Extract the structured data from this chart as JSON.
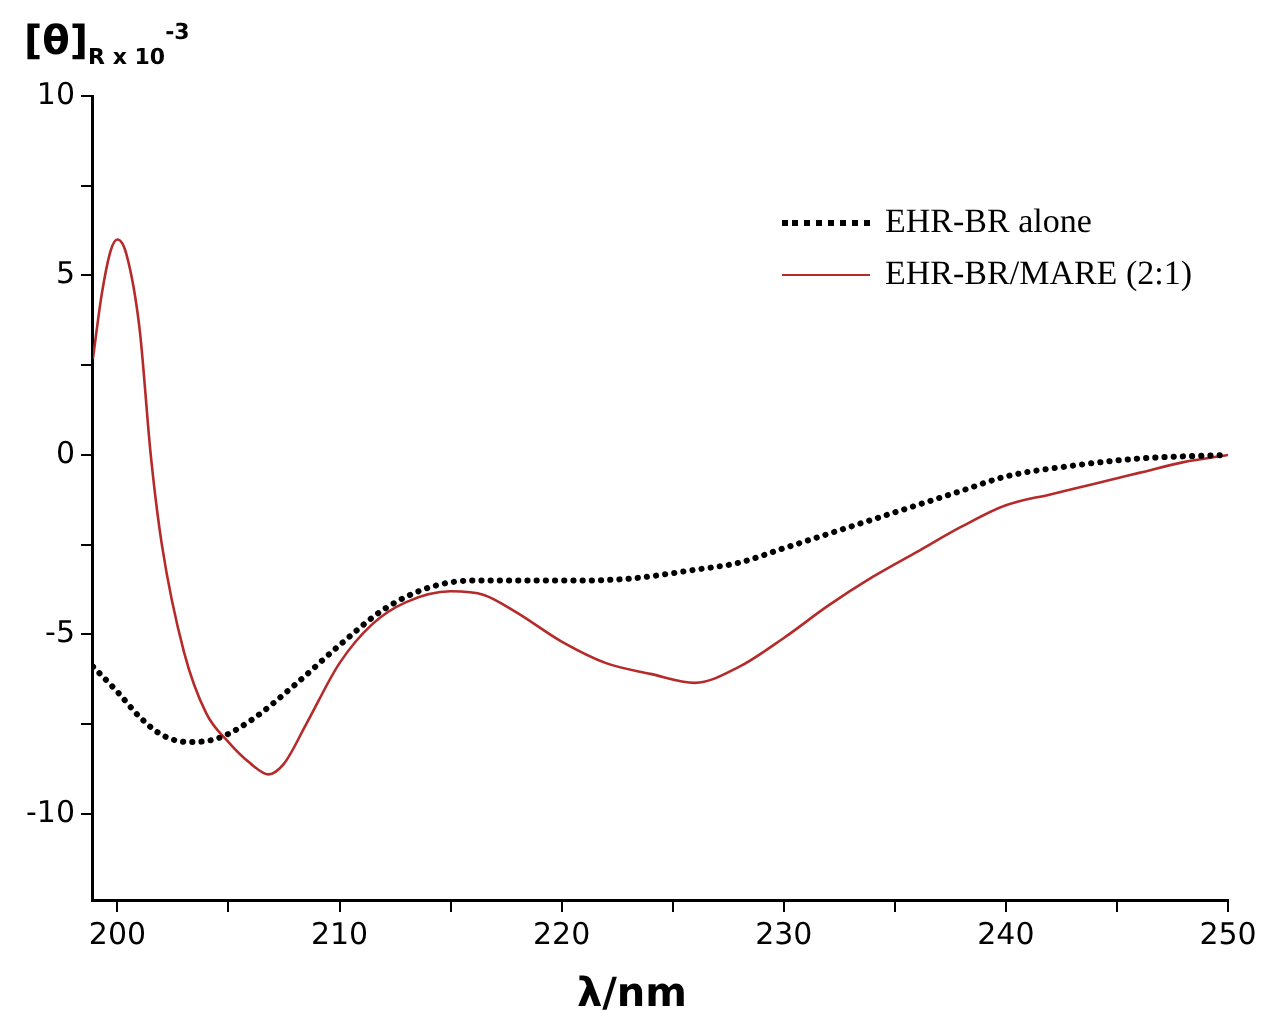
{
  "chart_data": {
    "type": "line",
    "ylabel": "[θ]$_{R x 10}$$^{-3}$",
    "xlabel": "λ/nm",
    "xlim": [
      198.9,
      250
    ],
    "ylim": [
      -12.4,
      10
    ],
    "xticks": [
      200,
      {
        "value": 205,
        "label": null
      },
      210,
      {
        "value": 215,
        "label": null
      },
      220,
      {
        "value": 225,
        "label": null
      },
      230,
      {
        "value": 235,
        "label": null
      },
      240,
      {
        "value": 245,
        "label": null
      },
      250
    ],
    "yticks": [
      -10,
      {
        "value": -7.5,
        "label": null
      },
      -5,
      {
        "value": -2.5,
        "label": null
      },
      0,
      {
        "value": 2.5,
        "label": null
      },
      5,
      {
        "value": 7.5,
        "label": null
      },
      10
    ],
    "grid": false,
    "legend": "top right",
    "marker": "none",
    "series": [
      {
        "name": "EHR-BR alone",
        "color": "#000000",
        "line_style": "dotted",
        "x": [
          198.9,
          200,
          201,
          202,
          203.2,
          204.5,
          206,
          208,
          210,
          212,
          214,
          216,
          220,
          223,
          226,
          228,
          230,
          233,
          236,
          238,
          240,
          243,
          246,
          250
        ],
        "values": [
          -5.9,
          -6.6,
          -7.3,
          -7.8,
          -8.0,
          -7.9,
          -7.4,
          -6.4,
          -5.3,
          -4.3,
          -3.7,
          -3.5,
          -3.5,
          -3.45,
          -3.2,
          -3.0,
          -2.6,
          -2.0,
          -1.4,
          -1.0,
          -0.6,
          -0.3,
          -0.1,
          0
        ]
      },
      {
        "name": "EHR-BR/MARE (2:1)",
        "color": "#b52a2a",
        "line_style": "solid",
        "x": [
          198.9,
          199.3,
          199.7,
          200,
          200.4,
          201,
          201.5,
          202,
          203,
          204,
          205,
          206,
          206.8,
          207.5,
          208.5,
          210,
          211.5,
          213,
          215,
          216.5,
          218,
          220,
          222,
          224,
          226,
          228,
          230,
          232,
          234,
          236,
          238,
          240,
          242,
          244,
          246,
          248,
          250
        ],
        "values": [
          2.7,
          4.5,
          5.7,
          6.0,
          5.6,
          3.5,
          0,
          -2.5,
          -5.5,
          -7.2,
          -8.0,
          -8.6,
          -8.9,
          -8.6,
          -7.5,
          -5.8,
          -4.7,
          -4.1,
          -3.8,
          -3.9,
          -4.4,
          -5.2,
          -5.8,
          -6.1,
          -6.35,
          -5.9,
          -5.1,
          -4.2,
          -3.4,
          -2.7,
          -2.0,
          -1.4,
          -1.1,
          -0.8,
          -0.5,
          -0.2,
          0
        ]
      }
    ]
  }
}
